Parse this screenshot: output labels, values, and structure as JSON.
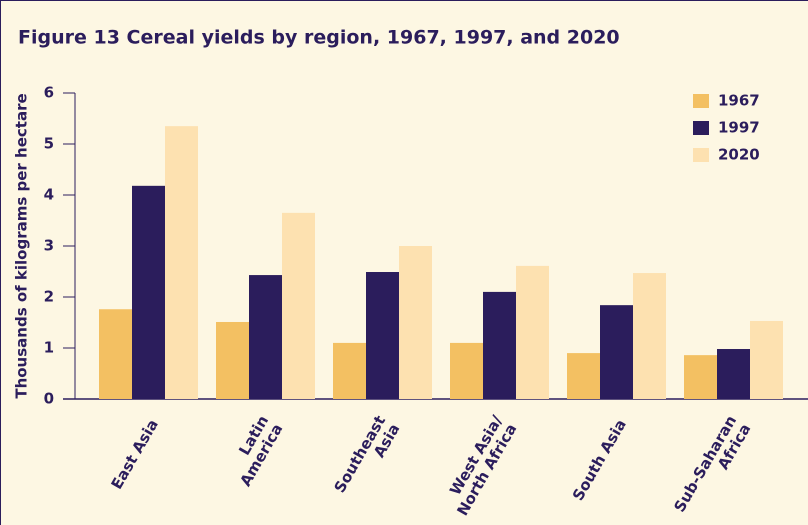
{
  "chart_data": {
    "type": "bar",
    "title": "Figure 13  Cereal yields by region, 1967, 1997, and 2020",
    "y_label": "Thousands of kilograms per hectare",
    "categories": [
      "East Asia",
      "Latin\nAmerica",
      "Southeast\nAsia",
      "West Asia/\nNorth Africa",
      "South Asia",
      "Sub-Saharan\nAfrica"
    ],
    "series": [
      {
        "name": "1967",
        "color": "#f3c062",
        "values": [
          1.76,
          1.51,
          1.1,
          1.1,
          0.9,
          0.86
        ]
      },
      {
        "name": "1997",
        "color": "#2b1d5c",
        "values": [
          4.18,
          2.43,
          2.49,
          2.1,
          1.84,
          0.98
        ]
      },
      {
        "name": "2020",
        "color": "#fde1b0",
        "values": [
          5.35,
          3.65,
          3.0,
          2.61,
          2.47,
          1.53
        ]
      }
    ],
    "ylim": [
      0,
      6
    ],
    "yticks": [
      0,
      1,
      2,
      3,
      4,
      5,
      6
    ],
    "legend": "top-right"
  }
}
